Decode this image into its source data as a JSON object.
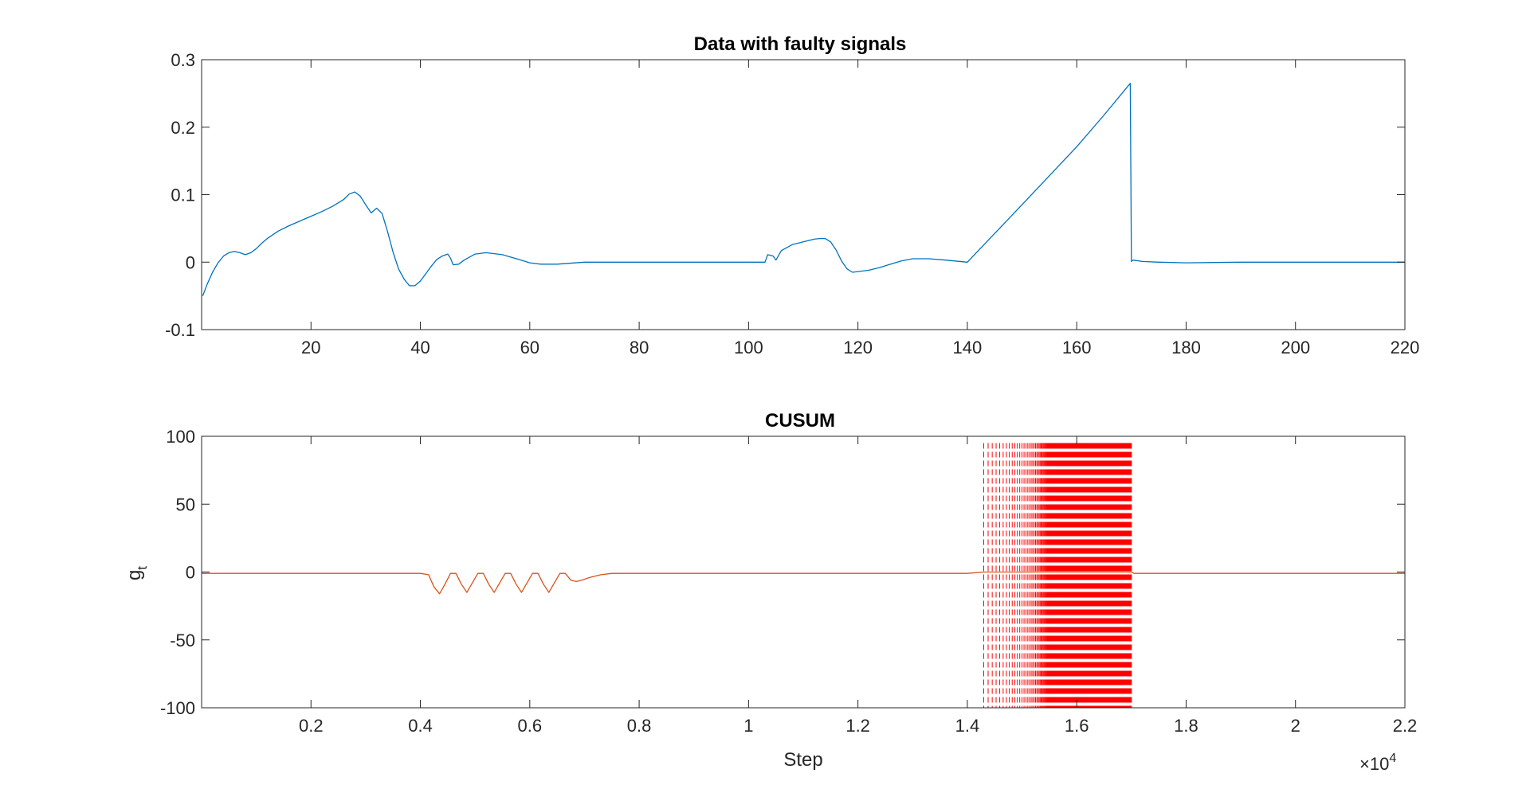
{
  "chart_data": [
    {
      "type": "line",
      "title": "Data with faulty signals",
      "xlabel": "",
      "ylabel": "",
      "xlim": [
        0,
        220
      ],
      "ylim": [
        -0.1,
        0.3
      ],
      "xticks": [
        20,
        40,
        60,
        80,
        100,
        120,
        140,
        160,
        180,
        200,
        220
      ],
      "xtick_labels": [
        "20",
        "40",
        "60",
        "80",
        "100",
        "120",
        "140",
        "160",
        "180",
        "200",
        "220"
      ],
      "yticks": [
        -0.1,
        0,
        0.1,
        0.2,
        0.3
      ],
      "ytick_labels": [
        "-0.1",
        "0",
        "0.1",
        "0.2",
        "0.3"
      ],
      "grid": false,
      "series": [
        {
          "color": "#0072BD",
          "x": [
            0.2,
            1,
            2,
            3,
            4,
            5,
            6,
            7,
            8,
            9,
            10,
            11,
            12,
            14,
            16,
            18,
            20,
            22,
            24,
            26,
            27,
            28,
            29,
            30,
            31,
            32,
            33,
            34,
            35,
            36,
            37,
            38,
            39,
            40,
            41,
            42,
            43,
            44,
            45,
            45.5,
            46,
            47,
            48,
            50,
            52,
            55,
            58,
            60,
            62,
            65,
            70,
            80,
            90,
            100,
            103,
            103.5,
            104.5,
            105,
            106,
            108,
            110,
            112,
            113,
            114,
            115,
            116,
            117,
            118,
            119,
            120,
            122,
            124,
            126,
            128,
            130,
            133,
            136,
            140,
            150,
            160,
            165,
            169.8,
            170,
            170.3,
            172,
            175,
            180,
            190,
            200,
            210,
            220
          ],
          "values": [
            -0.05,
            -0.033,
            -0.015,
            -0.001,
            0.009,
            0.014,
            0.016,
            0.014,
            0.011,
            0.014,
            0.02,
            0.028,
            0.035,
            0.046,
            0.054,
            0.061,
            0.068,
            0.075,
            0.083,
            0.093,
            0.101,
            0.104,
            0.098,
            0.085,
            0.073,
            0.08,
            0.072,
            0.045,
            0.015,
            -0.01,
            -0.025,
            -0.035,
            -0.035,
            -0.028,
            -0.017,
            -0.006,
            0.004,
            0.009,
            0.012,
            0.006,
            -0.004,
            -0.003,
            0.003,
            0.012,
            0.014,
            0.011,
            0.004,
            -0.001,
            -0.003,
            -0.003,
            0.0,
            0.0,
            0.0,
            0.0,
            0.0,
            0.011,
            0.009,
            0.003,
            0.017,
            0.026,
            0.03,
            0.034,
            0.035,
            0.035,
            0.03,
            0.018,
            0.002,
            -0.01,
            -0.015,
            -0.014,
            -0.012,
            -0.008,
            -0.003,
            0.002,
            0.005,
            0.005,
            0.003,
            0.0,
            0.085,
            0.171,
            0.218,
            0.265,
            0.001,
            0.003,
            0.001,
            0.0,
            -0.001,
            0.0,
            0.0,
            0.0,
            0.0
          ]
        }
      ]
    },
    {
      "type": "line",
      "title": "CUSUM",
      "xlabel": "Step",
      "ylabel": "g",
      "ylabel_subscript": "t",
      "xlim": [
        0,
        22000
      ],
      "ylim": [
        -100,
        100
      ],
      "x_exponent_label": "×10",
      "x_exponent_power": "4",
      "xticks": [
        2000,
        4000,
        6000,
        8000,
        10000,
        12000,
        14000,
        16000,
        18000,
        20000,
        22000
      ],
      "xtick_labels": [
        "0.2",
        "0.4",
        "0.6",
        "0.8",
        "1",
        "1.2",
        "1.4",
        "1.6",
        "1.8",
        "2",
        "2.2"
      ],
      "yticks": [
        -100,
        -50,
        0,
        50,
        100
      ],
      "ytick_labels": [
        "-100",
        "-50",
        "0",
        "50",
        "100"
      ],
      "grid": false,
      "series": [
        {
          "color": "#D95319",
          "x": [
            0,
            4000,
            4150,
            4250,
            4350,
            4450,
            4550,
            4650,
            4750,
            4850,
            4950,
            5050,
            5150,
            5250,
            5350,
            5450,
            5550,
            5650,
            5750,
            5850,
            5950,
            6050,
            6150,
            6250,
            6350,
            6450,
            6550,
            6650,
            6750,
            6850,
            6950,
            7100,
            7300,
            7500,
            8000,
            12000,
            14000,
            14300,
            17000,
            17050,
            18000,
            22000
          ],
          "values": [
            -1,
            -1,
            -2,
            -11,
            -16,
            -9,
            -1,
            -1,
            -9,
            -15,
            -8,
            -1,
            -1,
            -9,
            -15,
            -8,
            -1,
            -1,
            -9,
            -15,
            -8,
            -1,
            -1,
            -9,
            -15,
            -8,
            -1,
            -1,
            -6,
            -7,
            -6,
            -4,
            -2,
            -1,
            -1,
            -1,
            -1,
            0,
            0,
            -1,
            -1,
            -1
          ]
        }
      ],
      "alarm_lines": {
        "color": "#FF0000",
        "style": "dashed",
        "x_start": 14300,
        "x_end": 17000,
        "y_range": [
          -100,
          95
        ]
      }
    }
  ]
}
